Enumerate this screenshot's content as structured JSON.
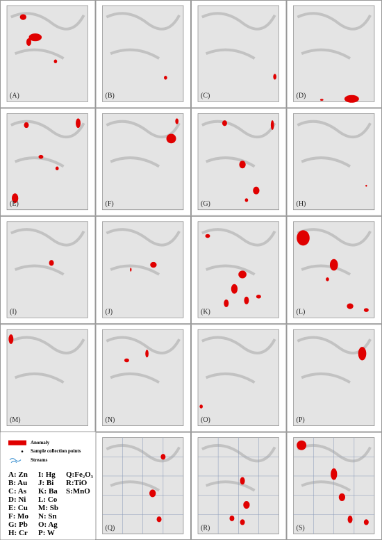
{
  "panels": [
    {
      "label": "(A)"
    },
    {
      "label": "(B)"
    },
    {
      "label": "(C)"
    },
    {
      "label": "(D)"
    },
    {
      "label": "(E)"
    },
    {
      "label": "(F)"
    },
    {
      "label": "(G)"
    },
    {
      "label": "(H)"
    },
    {
      "label": "(I)"
    },
    {
      "label": "(J)"
    },
    {
      "label": "(K)"
    },
    {
      "label": "(L)"
    },
    {
      "label": "(M)"
    },
    {
      "label": "(N)"
    },
    {
      "label": "(O)"
    },
    {
      "label": "(P)"
    },
    {
      "label": "(Q)"
    },
    {
      "label": "(R)"
    },
    {
      "label": "(S)"
    }
  ],
  "legend": {
    "items": [
      "Anomaly",
      "Sample collection points",
      "Streams"
    ]
  },
  "key": {
    "columns": [
      [
        "A: Zn",
        "B: Au",
        "C: As",
        "D: Ni",
        "E: Cu",
        "F: Mo",
        "G: Pb",
        "H: Cr"
      ],
      [
        "I: Hg",
        "J: Bi",
        "K: Ba",
        "L: Co",
        "M: Sb",
        "N: Sn",
        "O: Ag",
        "P: W"
      ],
      [
        "Q:Fe₂O₃",
        "R:TiO",
        "S:MnO"
      ]
    ]
  }
}
